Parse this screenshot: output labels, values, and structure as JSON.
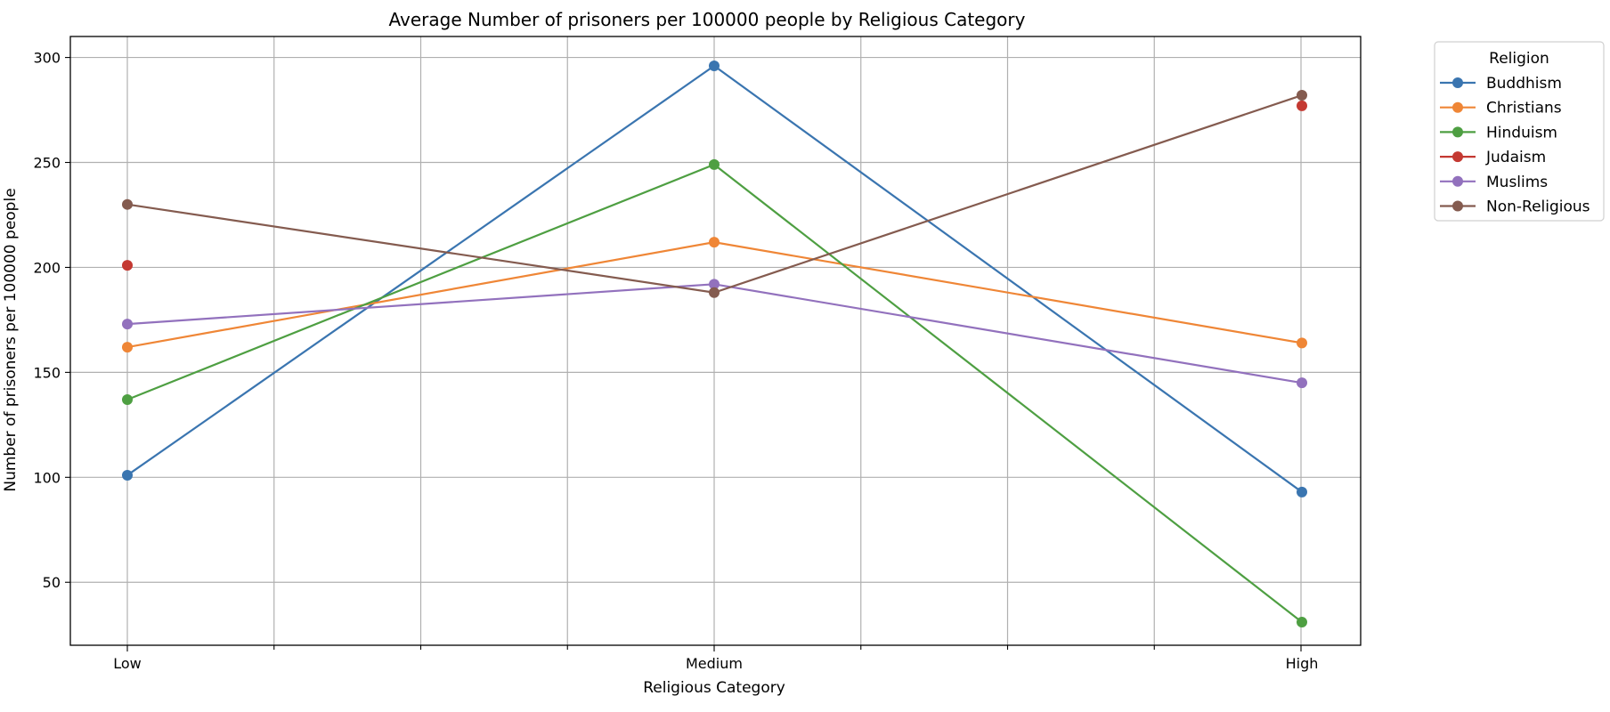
{
  "chart_data": {
    "type": "line",
    "title": "Average Number of prisoners per 100000 people by Religious Category",
    "xlabel": "Religious Category",
    "ylabel": "Number of prisoners per 100000 people",
    "categories": [
      "Low",
      "Medium",
      "High"
    ],
    "ylim": [
      20,
      310
    ],
    "yticks": [
      50,
      100,
      150,
      200,
      250,
      300
    ],
    "grid": true,
    "legend": {
      "title": "Religion",
      "placement": "outside-right-top"
    },
    "series": [
      {
        "name": "Buddhism",
        "color": "#3a75b0",
        "values": [
          101,
          296,
          93
        ]
      },
      {
        "name": "Christians",
        "color": "#ef8636",
        "values": [
          162,
          212,
          164
        ]
      },
      {
        "name": "Hinduism",
        "color": "#4e9f42",
        "values": [
          137,
          249,
          31
        ]
      },
      {
        "name": "Judaism",
        "color": "#c43932",
        "values": [
          201,
          null,
          277
        ]
      },
      {
        "name": "Muslims",
        "color": "#9271bd",
        "values": [
          173,
          192,
          145
        ]
      },
      {
        "name": "Non-Religious",
        "color": "#845b4f",
        "values": [
          230,
          188,
          282
        ]
      }
    ]
  }
}
